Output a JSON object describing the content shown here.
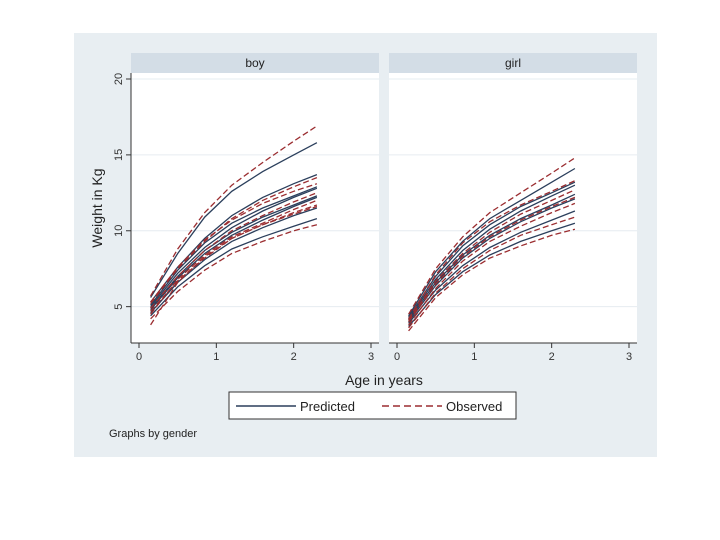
{
  "chart_data": {
    "type": "line",
    "figure_note": "Graphs by gender",
    "xlabel": "Age in years",
    "ylabel": "Weight in Kg",
    "xlim": [
      0,
      3
    ],
    "ylim": [
      3,
      20
    ],
    "xticks": [
      0,
      1,
      2,
      3
    ],
    "yticks": [
      5,
      10,
      15,
      20
    ],
    "grid": true,
    "legend": {
      "position": "bottom",
      "entries": [
        {
          "name": "Predicted",
          "style": "solid",
          "color": "#2b3f5c"
        },
        {
          "name": "Observed",
          "style": "dashed",
          "color": "#9b2d30"
        }
      ]
    },
    "x": [
      0.15,
      0.5,
      0.85,
      1.2,
      1.6,
      2.0,
      2.3
    ],
    "panels": [
      {
        "label": "boy",
        "series": [
          {
            "name": "Predicted",
            "curves": [
              [
                5.6,
                8.5,
                10.9,
                12.6,
                13.9,
                15.0,
                15.8
              ],
              [
                5.3,
                7.6,
                9.5,
                11.0,
                12.2,
                13.1,
                13.7
              ],
              [
                5.0,
                7.2,
                8.9,
                10.2,
                11.3,
                12.2,
                12.8
              ],
              [
                4.8,
                6.9,
                8.5,
                9.7,
                10.7,
                11.6,
                12.2
              ],
              [
                4.6,
                6.6,
                8.1,
                9.3,
                10.2,
                11.0,
                11.5
              ],
              [
                4.4,
                6.3,
                7.7,
                8.8,
                9.6,
                10.3,
                10.8
              ],
              [
                5.1,
                7.4,
                9.2,
                10.5,
                11.5,
                12.3,
                12.9
              ],
              [
                4.9,
                7.0,
                8.7,
                9.9,
                10.9,
                11.7,
                12.3
              ]
            ]
          },
          {
            "name": "Observed",
            "curves": [
              [
                5.7,
                8.8,
                11.2,
                13.0,
                14.5,
                15.9,
                16.9
              ],
              [
                5.2,
                7.5,
                9.3,
                10.8,
                12.0,
                12.9,
                13.5
              ],
              [
                4.9,
                7.0,
                8.7,
                10.0,
                11.0,
                11.9,
                12.5
              ],
              [
                4.5,
                6.8,
                8.4,
                9.6,
                10.5,
                11.4,
                12.0
              ],
              [
                4.7,
                6.7,
                8.2,
                9.5,
                10.4,
                11.2,
                11.7
              ],
              [
                4.2,
                6.0,
                7.4,
                8.5,
                9.3,
                10.0,
                10.4
              ],
              [
                5.3,
                7.6,
                9.4,
                10.7,
                11.8,
                12.6,
                13.1
              ],
              [
                3.8,
                6.6,
                8.3,
                9.5,
                10.4,
                11.1,
                11.6
              ]
            ]
          }
        ]
      },
      {
        "label": "girl",
        "series": [
          {
            "name": "Predicted",
            "curves": [
              [
                4.4,
                7.3,
                9.3,
                10.8,
                12.0,
                13.2,
                14.1
              ],
              [
                4.2,
                6.8,
                8.7,
                10.1,
                11.3,
                12.3,
                13.0
              ],
              [
                4.0,
                6.4,
                8.2,
                9.5,
                10.6,
                11.5,
                12.1
              ],
              [
                3.9,
                6.1,
                7.7,
                8.9,
                9.9,
                10.7,
                11.3
              ],
              [
                3.7,
                5.8,
                7.3,
                8.4,
                9.3,
                10.0,
                10.5
              ],
              [
                4.3,
                7.0,
                9.0,
                10.4,
                11.6,
                12.5,
                13.2
              ],
              [
                4.1,
                6.6,
                8.4,
                9.7,
                10.8,
                11.7,
                12.4
              ]
            ]
          },
          {
            "name": "Observed",
            "curves": [
              [
                4.5,
                7.5,
                9.6,
                11.2,
                12.5,
                13.8,
                14.8
              ],
              [
                4.1,
                6.7,
                8.5,
                9.9,
                11.1,
                12.0,
                12.7
              ],
              [
                3.8,
                6.2,
                8.0,
                9.3,
                10.3,
                11.2,
                11.8
              ],
              [
                3.6,
                5.9,
                7.5,
                8.7,
                9.7,
                10.4,
                10.9
              ],
              [
                3.4,
                5.6,
                7.1,
                8.2,
                9.0,
                9.7,
                10.1
              ],
              [
                4.2,
                7.1,
                9.2,
                10.6,
                11.7,
                12.6,
                13.3
              ],
              [
                4.0,
                6.5,
                8.3,
                9.6,
                10.7,
                11.6,
                12.2
              ]
            ]
          }
        ]
      }
    ]
  }
}
